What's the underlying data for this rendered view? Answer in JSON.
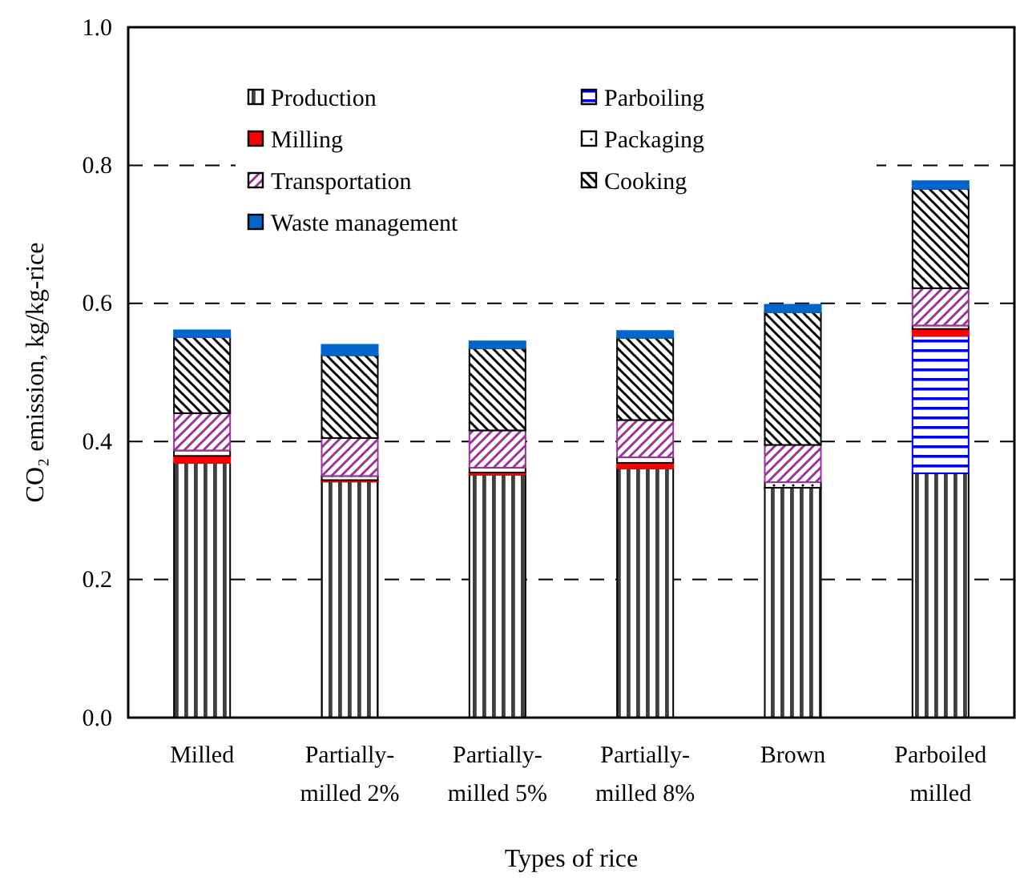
{
  "chart_data": {
    "type": "bar",
    "stacked": true,
    "xlabel": "Types of rice",
    "ylabel": "CO₂ emission, kg/kg-rice",
    "categories": [
      "Milled",
      "Partially-milled 2%",
      "Partially-milled 5%",
      "Partially-milled 8%",
      "Brown",
      "Parboiled milled"
    ],
    "series": [
      {
        "name": "Production",
        "color": "#000000",
        "values": [
          0.369,
          0.342,
          0.352,
          0.361,
          0.333,
          0.354
        ]
      },
      {
        "name": "Parboiling",
        "color": "#0000ff",
        "values": [
          0,
          0,
          0,
          0,
          0,
          0.199
        ]
      },
      {
        "name": "Milling",
        "color": "#ff0000",
        "values": [
          0.01,
          0.002,
          0.003,
          0.008,
          0,
          0.01
        ]
      },
      {
        "name": "Packaging",
        "color": "#000000",
        "values": [
          0.008,
          0.006,
          0.007,
          0.008,
          0.008,
          0.005
        ]
      },
      {
        "name": "Transportation",
        "color": "#993399",
        "values": [
          0.054,
          0.055,
          0.054,
          0.054,
          0.054,
          0.054
        ]
      },
      {
        "name": "Cooking",
        "color": "#000000",
        "values": [
          0.11,
          0.12,
          0.119,
          0.119,
          0.192,
          0.144
        ]
      },
      {
        "name": "Waste management",
        "color": "#0066cc",
        "values": [
          0.01,
          0.015,
          0.01,
          0.01,
          0.011,
          0.011
        ]
      }
    ],
    "ylim": [
      0,
      1
    ],
    "yticks": [
      {
        "value": 0,
        "label": "0.0"
      },
      {
        "value": 0.2,
        "label": "0.2"
      },
      {
        "value": 0.4,
        "label": "0.4"
      },
      {
        "value": 0.6,
        "label": "0.6"
      },
      {
        "value": 0.8,
        "label": "0.8"
      },
      {
        "value": 1,
        "label": "1.0"
      }
    ],
    "grid": "y",
    "legend": "top left"
  }
}
